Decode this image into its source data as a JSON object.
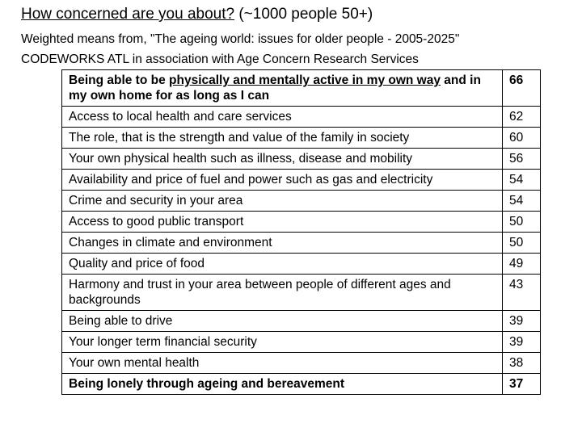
{
  "header": {
    "title_main": "How concerned are you about?",
    "title_suffix": " (~1000 people 50+)",
    "subtitle1": "Weighted means from, \"The ageing world: issues for older people - 2005-2025\"",
    "subtitle2": "CODEWORKS ATL in association with Age Concern Research Services"
  },
  "table": {
    "rows": [
      {
        "pre": "Being able to be ",
        "ul": "physically and mentally active in my own way",
        "post": " and in my own home for as long as I can",
        "value": "66",
        "bold": true
      },
      {
        "label": "Access to local health and care services",
        "value": "62"
      },
      {
        "label": "The role, that is the strength and value of the family in society",
        "value": "60"
      },
      {
        "label": "Your own physical health such as illness, disease and mobility",
        "value": "56"
      },
      {
        "label": "Availability and price of fuel and power such as gas and electricity",
        "value": "54"
      },
      {
        "label": "Crime and security in your area",
        "value": "54"
      },
      {
        "label": "Access to good public transport",
        "value": "50"
      },
      {
        "label": "Changes in climate and environment",
        "value": "50"
      },
      {
        "label": "Quality and price of food",
        "value": "49"
      },
      {
        "label": "Harmony and trust in your area between people of different ages and backgrounds",
        "value": "43"
      },
      {
        "label": "Being able to drive",
        "value": "39"
      },
      {
        "label": "Your longer term financial security",
        "value": "39"
      },
      {
        "label": "Your own mental health",
        "value": "38"
      },
      {
        "label": "Being lonely through ageing and bereavement",
        "value": "37",
        "bold": true
      }
    ]
  }
}
